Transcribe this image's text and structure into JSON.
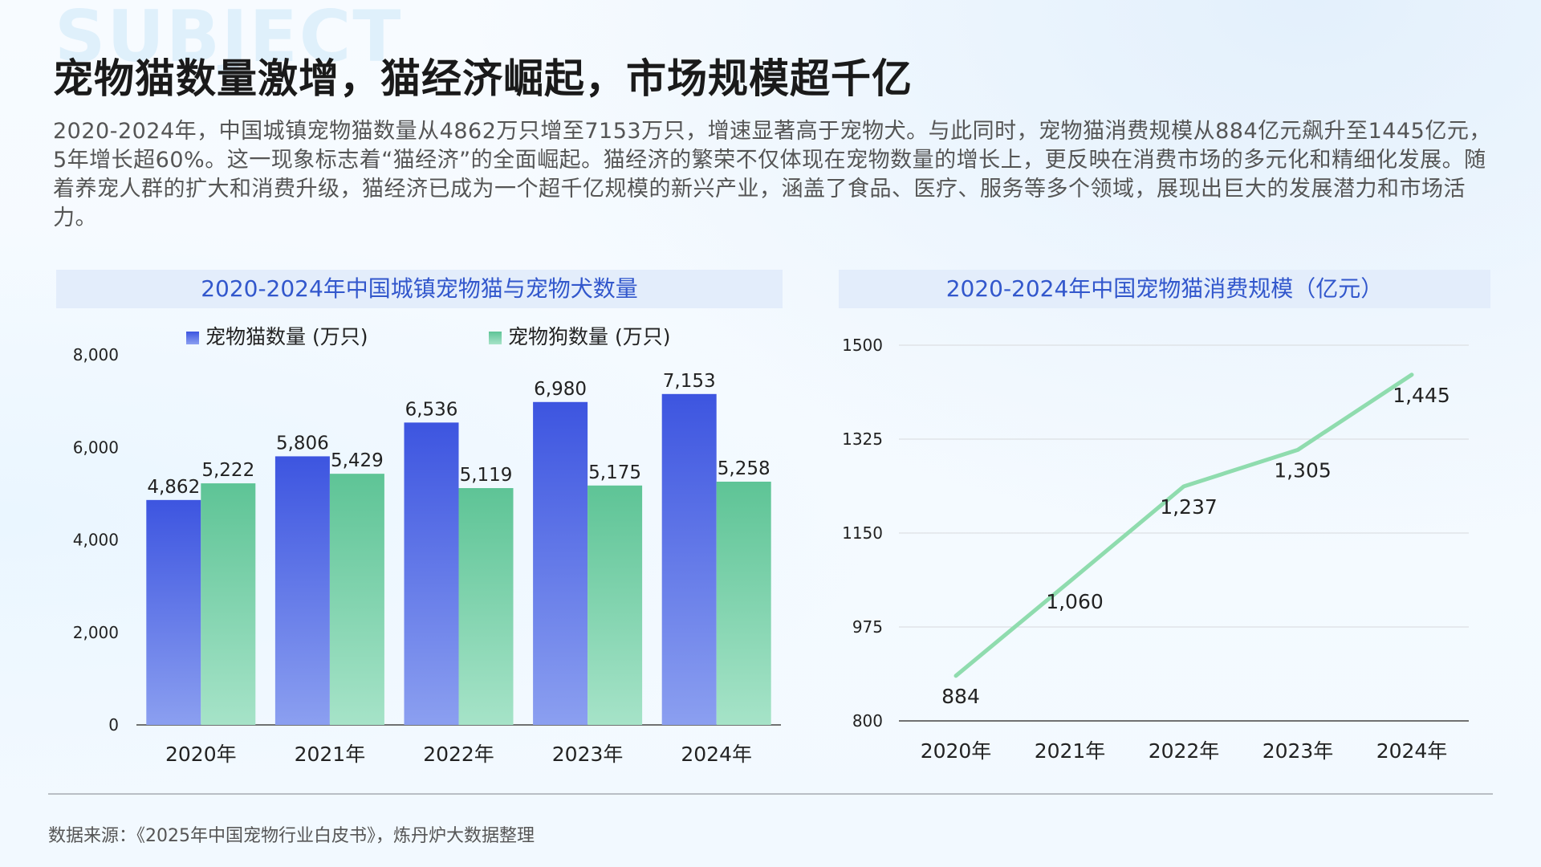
{
  "watermark": "SUBJECT",
  "title": "宠物猫数量激增，猫经济崛起，市场规模超千亿",
  "description": "2020-2024年，中国城镇宠物猫数量从4862万只增至7153万只，增速显著高于宠物犬。与此同时，宠物猫消费规模从884亿元飙升至1445亿元，5年增长超60%。这一现象标志着“猫经济”的全面崛起。猫经济的繁荣不仅体现在宠物数量的增长上，更反映在消费市场的多元化和精细化发展。随着养宠人群的扩大和消费升级，猫经济已成为一个超千亿规模的新兴产业，涵盖了食品、医疗、服务等多个领域，展现出巨大的发展潜力和市场活力。",
  "source": "数据来源：《2025年中国宠物行业白皮书》，炼丹炉大数据整理",
  "colors": {
    "cat_top": "#3d55e0",
    "cat_bottom": "#8b9ff0",
    "dog_top": "#5ec496",
    "dog_bottom": "#a6e3c8",
    "line": "#8fdcae",
    "title_blue": "#3257cc"
  },
  "chart_data": [
    {
      "type": "bar",
      "title": "2020-2024年中国城镇宠物猫与宠物犬数量",
      "categories": [
        "2020年",
        "2021年",
        "2022年",
        "2023年",
        "2024年"
      ],
      "series": [
        {
          "name": "宠物猫数量 (万只)",
          "values": [
            4862,
            5806,
            6536,
            6980,
            7153
          ],
          "labels": [
            "4,862",
            "5,806",
            "6,536",
            "6,980",
            "7,153"
          ]
        },
        {
          "name": "宠物狗数量 (万只)",
          "values": [
            5222,
            5429,
            5119,
            5175,
            5258
          ],
          "labels": [
            "5,222",
            "5,429",
            "5,119",
            "5,175",
            "5,258"
          ]
        }
      ],
      "ylim": [
        0,
        8000
      ],
      "yticks": [
        0,
        2000,
        4000,
        6000,
        8000
      ],
      "ytick_labels": [
        "0",
        "2,000",
        "4,000",
        "6,000",
        "8,000"
      ],
      "legend": "top",
      "grid": false
    },
    {
      "type": "line",
      "title": "2020-2024年中国宠物猫消费规模（亿元）",
      "categories": [
        "2020年",
        "2021年",
        "2022年",
        "2023年",
        "2024年"
      ],
      "series": [
        {
          "values": [
            884,
            1060,
            1237,
            1305,
            1445
          ],
          "labels": [
            "884",
            "1,060",
            "1,237",
            "1,305",
            "1,445"
          ]
        }
      ],
      "ylim": [
        800,
        1500
      ],
      "yticks": [
        800,
        975,
        1150,
        1325,
        1500
      ],
      "ytick_labels": [
        "800",
        "975",
        "1150",
        "1325",
        "1500"
      ],
      "grid": true
    }
  ]
}
